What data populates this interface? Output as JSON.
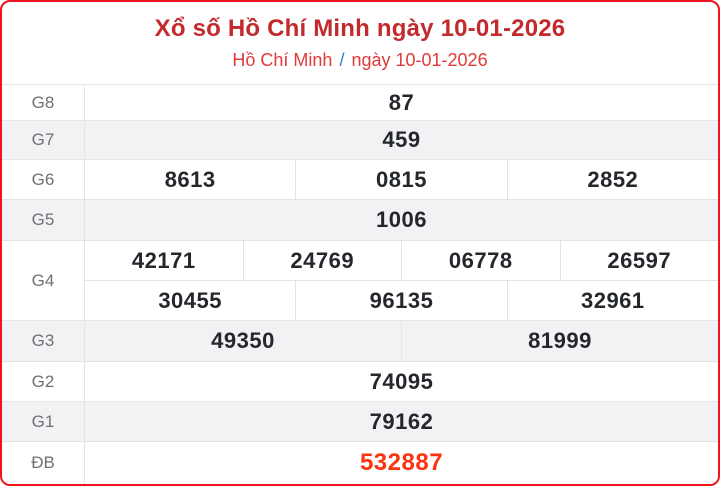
{
  "header": {
    "title": "Xổ số Hồ Chí Minh ngày 10-01-2026",
    "breadcrumb": {
      "province": "Hồ Chí Minh",
      "separator": "/",
      "date": "ngày 10-01-2026"
    }
  },
  "table": {
    "rows": [
      {
        "label": "G8",
        "values": [
          "87"
        ]
      },
      {
        "label": "G7",
        "values": [
          "459"
        ]
      },
      {
        "label": "G6",
        "values": [
          "8613",
          "0815",
          "2852"
        ]
      },
      {
        "label": "G5",
        "values": [
          "1006"
        ]
      },
      {
        "label": "G4",
        "subrows": [
          [
            "42171",
            "24769",
            "06778",
            "26597"
          ],
          [
            "30455",
            "96135",
            "32961"
          ]
        ]
      },
      {
        "label": "G3",
        "values": [
          "49350",
          "81999"
        ]
      },
      {
        "label": "G2",
        "values": [
          "74095"
        ]
      },
      {
        "label": "G1",
        "values": [
          "79162"
        ]
      },
      {
        "label": "ĐB",
        "values": [
          "532887"
        ]
      }
    ]
  },
  "colors": {
    "border_red": "#f2121b",
    "title_red": "#c22a2d",
    "link_red": "#e13a3a",
    "separator_blue": "#3a77d6",
    "special_red": "#fb340f",
    "value_dark": "#24272c",
    "label_gray": "#707075",
    "divider": "#e4e4e6",
    "row_shade": "#f2f2f4"
  }
}
